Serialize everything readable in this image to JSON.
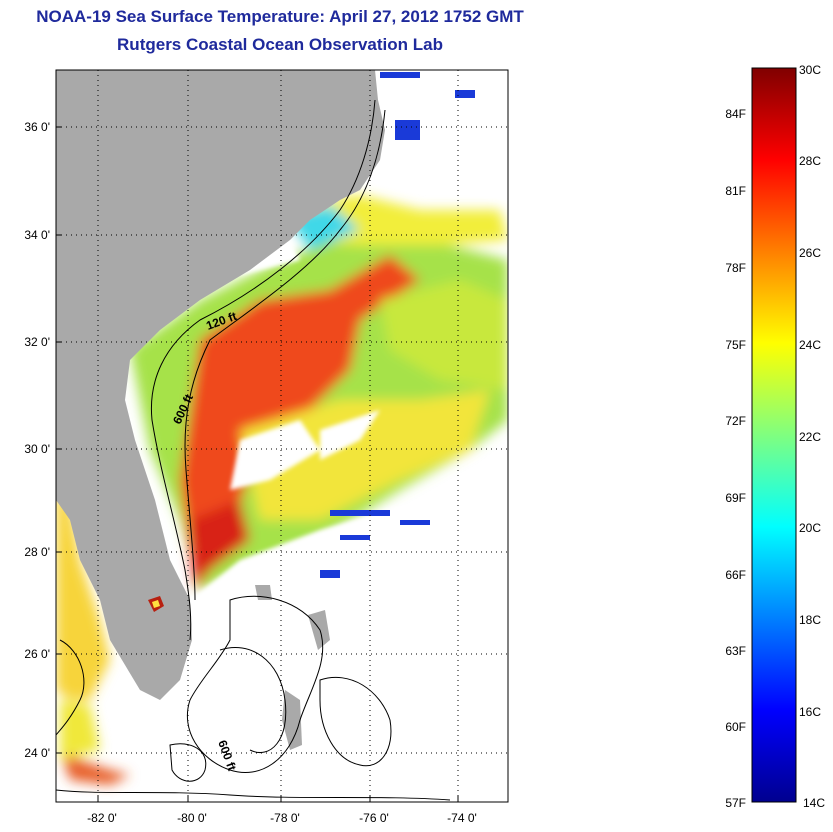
{
  "title": "NOAA-19 Sea Surface Temperature:  April 27, 2012 1752 GMT",
  "subtitle": "Rutgers Coastal Ocean Observation Lab",
  "map": {
    "lat_labels": [
      "36 0'",
      "34 0'",
      "32 0'",
      "30 0'",
      "28 0'",
      "26 0'",
      "24 0'"
    ],
    "lon_labels": [
      "-82 0'",
      "-80 0'",
      "-78 0'",
      "-76 0'",
      "-74 0'"
    ],
    "isobath_labels": [
      "120 ft",
      "600 ft",
      "600 ft"
    ],
    "colors": {
      "land": "#a9a9a9",
      "cloud": "#ffffff",
      "warm": "#e8401a",
      "shelf": "#8fdc5a",
      "cool": "#22d4e6"
    }
  },
  "colorbar": {
    "celsius_labels": [
      "30C",
      "28C",
      "26C",
      "24C",
      "22C",
      "20C",
      "18C",
      "16C",
      "14C"
    ],
    "fahrenheit_labels": [
      "84F",
      "81F",
      "78F",
      "75F",
      "72F",
      "69F",
      "66F",
      "63F",
      "60F",
      "57F"
    ],
    "range_c": [
      14,
      30
    ],
    "colormap": "jet"
  }
}
